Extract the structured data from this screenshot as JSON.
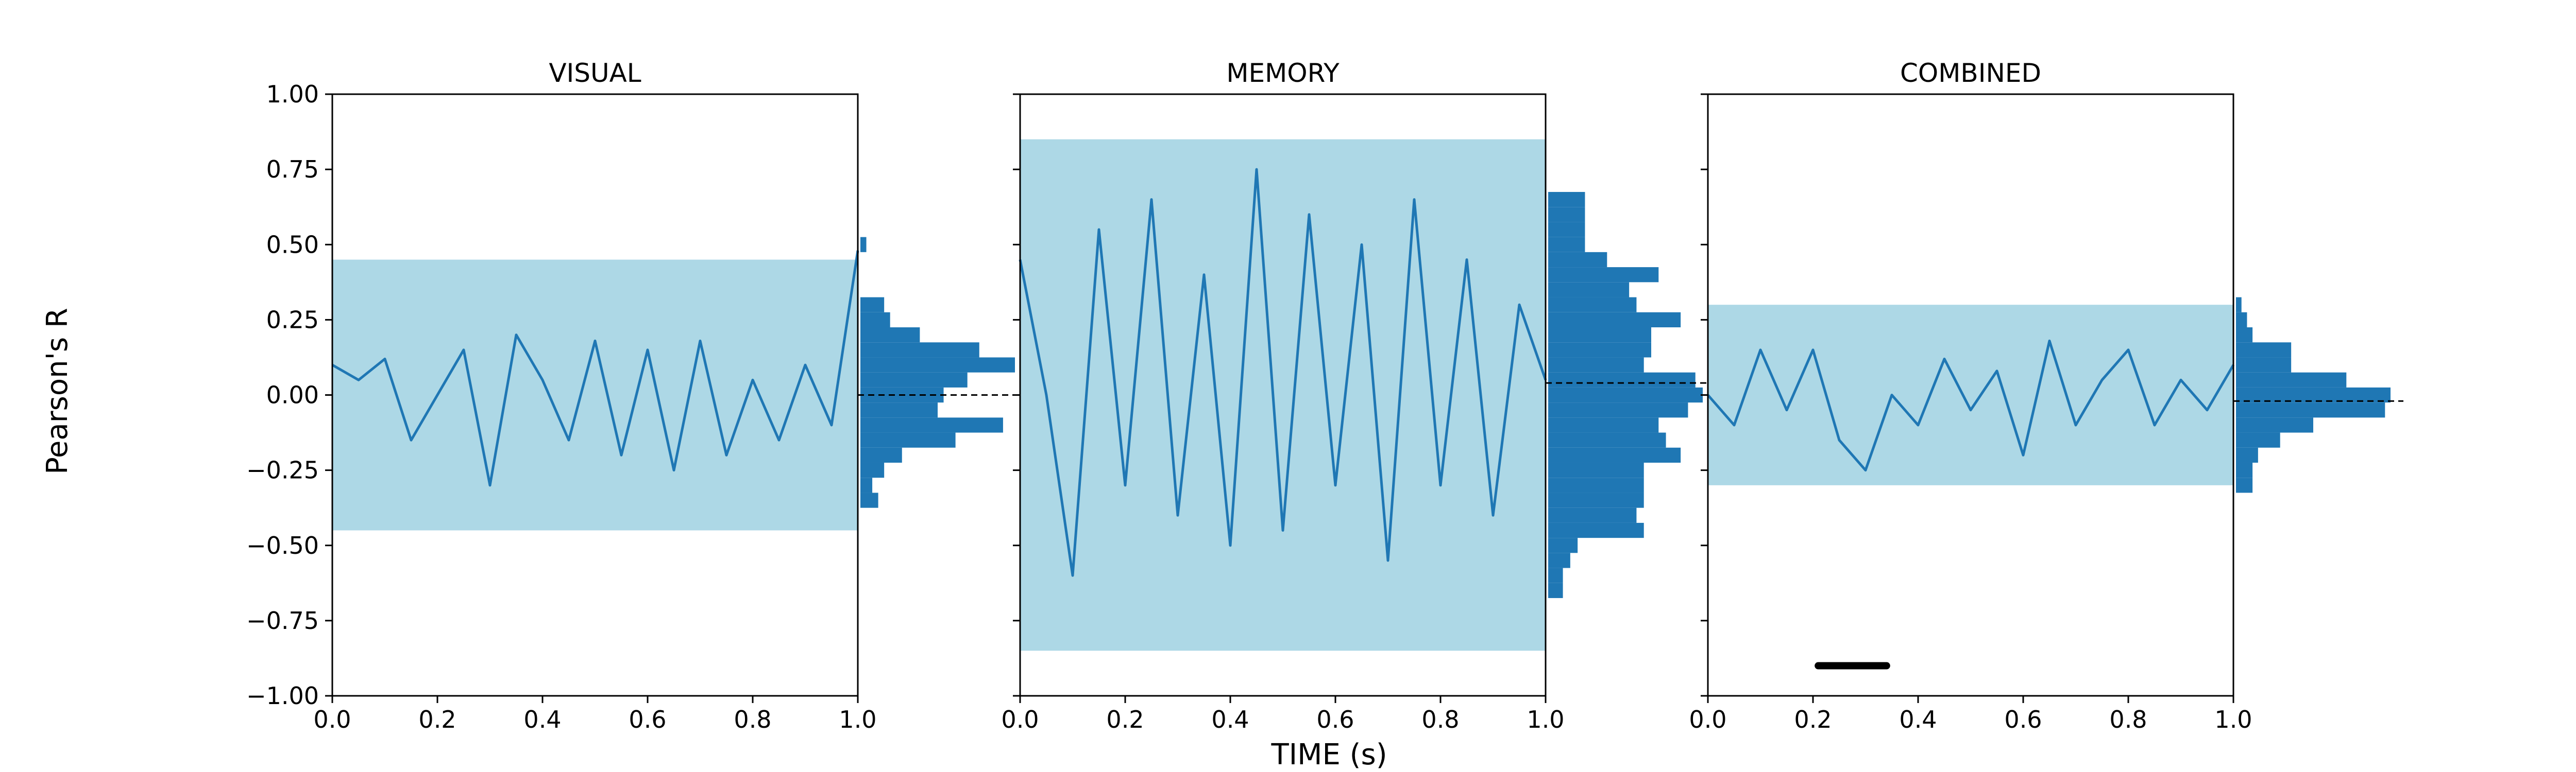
{
  "figure": {
    "ylabel": "Pearson's R",
    "xlabel": "TIME (s)"
  },
  "chart_data": [
    {
      "type": "line",
      "title": "VISUAL",
      "xlim": [
        0.0,
        1.0
      ],
      "ylim": [
        -1.0,
        1.0
      ],
      "xticks": [
        "0.0",
        "0.2",
        "0.4",
        "0.6",
        "0.8",
        "1.0"
      ],
      "yticks": [
        "1.00",
        "0.75",
        "0.50",
        "0.25",
        "0.00",
        "−0.25",
        "−0.50",
        "−0.75",
        "−1.00"
      ],
      "band": {
        "lower": -0.45,
        "upper": 0.45,
        "color": "#add8e6"
      },
      "series": [
        {
          "x": [
            0.0,
            0.05,
            0.1,
            0.15,
            0.2,
            0.25,
            0.3,
            0.35,
            0.4,
            0.45,
            0.5,
            0.55,
            0.6,
            0.65,
            0.7,
            0.75,
            0.8,
            0.85,
            0.9,
            0.95,
            1.0
          ],
          "y": [
            0.1,
            0.05,
            0.12,
            -0.15,
            0.0,
            0.15,
            -0.3,
            0.2,
            0.05,
            -0.15,
            0.18,
            -0.2,
            0.15,
            -0.25,
            0.18,
            -0.2,
            0.05,
            -0.15,
            0.1,
            -0.1,
            0.48
          ],
          "color": "#1f77b4"
        }
      ],
      "histogram": {
        "bins_y": [
          0.5,
          0.45,
          0.4,
          0.35,
          0.3,
          0.25,
          0.2,
          0.15,
          0.1,
          0.05,
          0.0,
          -0.05,
          -0.1,
          -0.15,
          -0.2,
          -0.25,
          -0.3,
          -0.35
        ],
        "counts": [
          1,
          0,
          0,
          0,
          4,
          5,
          10,
          20,
          26,
          18,
          14,
          13,
          24,
          16,
          7,
          4,
          2,
          3
        ],
        "max_count": 26
      },
      "mean_line": 0.0
    },
    {
      "type": "line",
      "title": "MEMORY",
      "xlim": [
        0.0,
        1.0
      ],
      "ylim": [
        -1.0,
        1.0
      ],
      "xticks": [
        "0.0",
        "0.2",
        "0.4",
        "0.6",
        "0.8",
        "1.0"
      ],
      "band": {
        "lower": -0.85,
        "upper": 0.85,
        "color": "#add8e6"
      },
      "series": [
        {
          "x": [
            0.0,
            0.05,
            0.1,
            0.15,
            0.2,
            0.25,
            0.3,
            0.35,
            0.4,
            0.45,
            0.5,
            0.55,
            0.6,
            0.65,
            0.7,
            0.75,
            0.8,
            0.85,
            0.9,
            0.95,
            1.0
          ],
          "y": [
            0.45,
            0.0,
            -0.6,
            0.55,
            -0.3,
            0.65,
            -0.4,
            0.4,
            -0.5,
            0.75,
            -0.45,
            0.6,
            -0.3,
            0.5,
            -0.55,
            0.65,
            -0.3,
            0.45,
            -0.4,
            0.3,
            0.05
          ],
          "color": "#1f77b4"
        }
      ],
      "histogram": {
        "bins_y": [
          0.65,
          0.6,
          0.55,
          0.5,
          0.45,
          0.4,
          0.35,
          0.3,
          0.25,
          0.2,
          0.15,
          0.1,
          0.05,
          0.0,
          -0.05,
          -0.1,
          -0.15,
          -0.2,
          -0.25,
          -0.3,
          -0.35,
          -0.4,
          -0.45,
          -0.5,
          -0.55,
          -0.6,
          -0.65
        ],
        "counts": [
          10,
          10,
          10,
          10,
          16,
          30,
          22,
          24,
          36,
          28,
          28,
          26,
          40,
          42,
          38,
          30,
          32,
          36,
          26,
          26,
          26,
          24,
          26,
          8,
          6,
          4,
          4
        ],
        "max_count": 42
      },
      "mean_line": 0.04
    },
    {
      "type": "line",
      "title": "COMBINED",
      "xlim": [
        0.0,
        1.0
      ],
      "ylim": [
        -1.0,
        1.0
      ],
      "xticks": [
        "0.0",
        "0.2",
        "0.4",
        "0.6",
        "0.8",
        "1.0"
      ],
      "band": {
        "lower": -0.3,
        "upper": 0.3,
        "color": "#add8e6"
      },
      "series": [
        {
          "x": [
            0.0,
            0.05,
            0.1,
            0.15,
            0.2,
            0.25,
            0.3,
            0.35,
            0.4,
            0.45,
            0.5,
            0.55,
            0.6,
            0.65,
            0.7,
            0.75,
            0.8,
            0.85,
            0.9,
            0.95,
            1.0
          ],
          "y": [
            0.0,
            -0.1,
            0.15,
            -0.05,
            0.15,
            -0.15,
            -0.25,
            0.0,
            -0.1,
            0.12,
            -0.05,
            0.08,
            -0.2,
            0.18,
            -0.1,
            0.05,
            0.15,
            -0.1,
            0.05,
            -0.05,
            0.1
          ],
          "color": "#1f77b4"
        }
      ],
      "histogram": {
        "bins_y": [
          0.3,
          0.25,
          0.2,
          0.15,
          0.1,
          0.05,
          0.0,
          -0.05,
          -0.1,
          -0.15,
          -0.2,
          -0.25,
          -0.3
        ],
        "counts": [
          1,
          2,
          3,
          10,
          10,
          20,
          28,
          27,
          14,
          8,
          4,
          3,
          3
        ],
        "max_count": 28
      },
      "mean_line": -0.02,
      "significance_bar": {
        "x_start": 0.21,
        "x_end": 0.34,
        "y": -0.9
      }
    }
  ]
}
